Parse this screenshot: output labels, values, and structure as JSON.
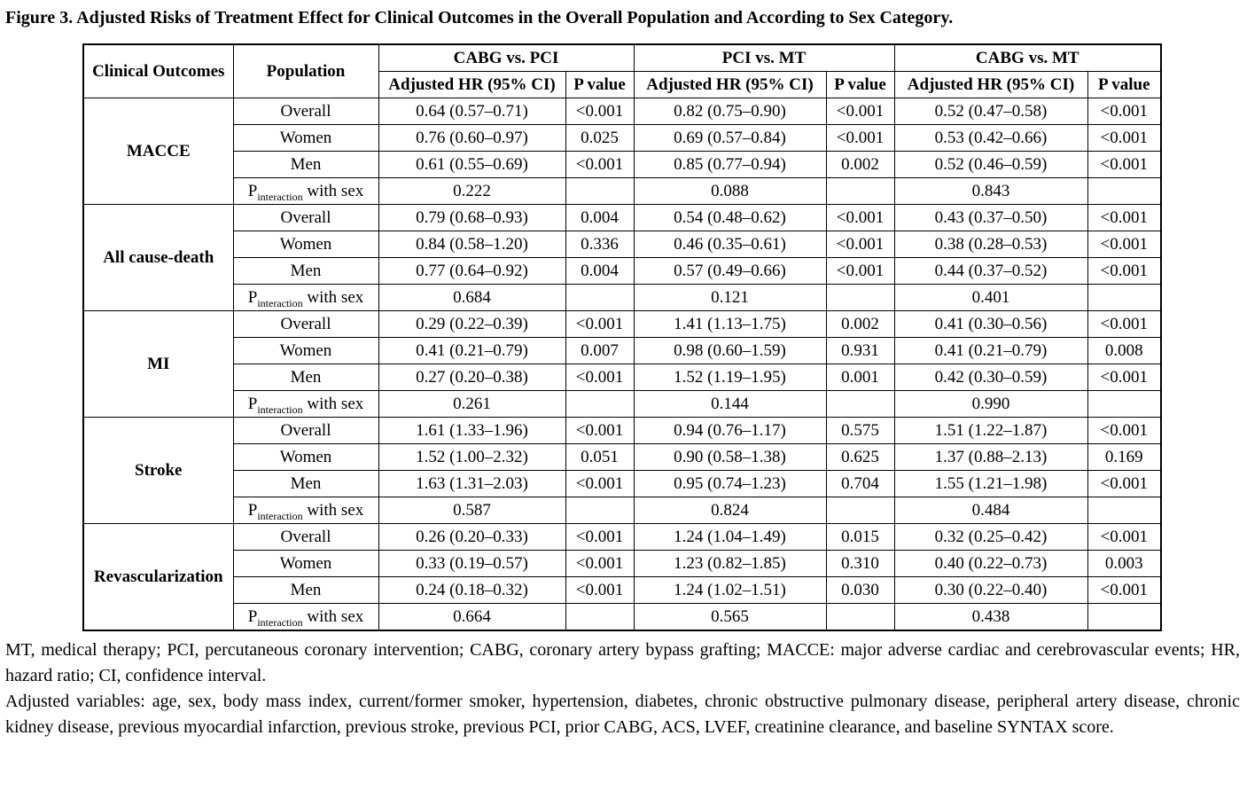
{
  "title": "Figure 3. Adjusted Risks of Treatment Effect for Clinical Outcomes in the Overall Population and According to Sex Category.",
  "table": {
    "headers": {
      "clinical_outcomes": "Clinical Outcomes",
      "population": "Population",
      "groups": [
        "CABG vs. PCI",
        "PCI vs. MT",
        "CABG vs. MT"
      ],
      "adjusted_hr": "Adjusted HR (95% CI)",
      "p_value": "P value"
    },
    "p_interaction_label": {
      "prefix": "P",
      "subscript": "interaction",
      "suffix": " with sex"
    },
    "outcomes": [
      {
        "name": "MACCE",
        "rows": [
          {
            "population": "Overall",
            "cells": [
              "0.64 (0.57–0.71)",
              "<0.001",
              "0.82 (0.75–0.90)",
              "<0.001",
              "0.52 (0.47–0.58)",
              "<0.001"
            ]
          },
          {
            "population": "Women",
            "cells": [
              "0.76 (0.60–0.97)",
              "0.025",
              "0.69 (0.57–0.84)",
              "<0.001",
              "0.53 (0.42–0.66)",
              "<0.001"
            ]
          },
          {
            "population": "Men",
            "cells": [
              "0.61 (0.55–0.69)",
              "<0.001",
              "0.85 (0.77–0.94)",
              "0.002",
              "0.52 (0.46–0.59)",
              "<0.001"
            ]
          }
        ],
        "p_interaction": [
          "0.222",
          "0.088",
          "0.843"
        ]
      },
      {
        "name": "All cause-death",
        "rows": [
          {
            "population": "Overall",
            "cells": [
              "0.79 (0.68–0.93)",
              "0.004",
              "0.54 (0.48–0.62)",
              "<0.001",
              "0.43 (0.37–0.50)",
              "<0.001"
            ]
          },
          {
            "population": "Women",
            "cells": [
              "0.84 (0.58–1.20)",
              "0.336",
              "0.46 (0.35–0.61)",
              "<0.001",
              "0.38 (0.28–0.53)",
              "<0.001"
            ]
          },
          {
            "population": "Men",
            "cells": [
              "0.77 (0.64–0.92)",
              "0.004",
              "0.57 (0.49–0.66)",
              "<0.001",
              "0.44 (0.37–0.52)",
              "<0.001"
            ]
          }
        ],
        "p_interaction": [
          "0.684",
          "0.121",
          "0.401"
        ]
      },
      {
        "name": "MI",
        "rows": [
          {
            "population": "Overall",
            "cells": [
              "0.29 (0.22–0.39)",
              "<0.001",
              "1.41 (1.13–1.75)",
              "0.002",
              "0.41 (0.30–0.56)",
              "<0.001"
            ]
          },
          {
            "population": "Women",
            "cells": [
              "0.41 (0.21–0.79)",
              "0.007",
              "0.98 (0.60–1.59)",
              "0.931",
              "0.41 (0.21–0.79)",
              "0.008"
            ]
          },
          {
            "population": "Men",
            "cells": [
              "0.27 (0.20–0.38)",
              "<0.001",
              "1.52 (1.19–1.95)",
              "0.001",
              "0.42 (0.30–0.59)",
              "<0.001"
            ]
          }
        ],
        "p_interaction": [
          "0.261",
          "0.144",
          "0.990"
        ]
      },
      {
        "name": "Stroke",
        "rows": [
          {
            "population": "Overall",
            "cells": [
              "1.61 (1.33–1.96)",
              "<0.001",
              "0.94 (0.76–1.17)",
              "0.575",
              "1.51 (1.22–1.87)",
              "<0.001"
            ]
          },
          {
            "population": "Women",
            "cells": [
              "1.52 (1.00–2.32)",
              "0.051",
              "0.90 (0.58–1.38)",
              "0.625",
              "1.37 (0.88–2.13)",
              "0.169"
            ]
          },
          {
            "population": "Men",
            "cells": [
              "1.63 (1.31–2.03)",
              "<0.001",
              "0.95 (0.74–1.23)",
              "0.704",
              "1.55 (1.21–1.98)",
              "<0.001"
            ]
          }
        ],
        "p_interaction": [
          "0.587",
          "0.824",
          "0.484"
        ]
      },
      {
        "name": "Revascularization",
        "rows": [
          {
            "population": "Overall",
            "cells": [
              "0.26 (0.20–0.33)",
              "<0.001",
              "1.24 (1.04–1.49)",
              "0.015",
              "0.32 (0.25–0.42)",
              "<0.001"
            ]
          },
          {
            "population": "Women",
            "cells": [
              "0.33 (0.19–0.57)",
              "<0.001",
              "1.23 (0.82–1.85)",
              "0.310",
              "0.40 (0.22–0.73)",
              "0.003"
            ]
          },
          {
            "population": "Men",
            "cells": [
              "0.24 (0.18–0.32)",
              "<0.001",
              "1.24 (1.02–1.51)",
              "0.030",
              "0.30 (0.22–0.40)",
              "<0.001"
            ]
          }
        ],
        "p_interaction": [
          "0.664",
          "0.565",
          "0.438"
        ]
      }
    ]
  },
  "footnotes": [
    "MT, medical therapy; PCI, percutaneous coronary intervention; CABG, coronary artery bypass grafting; MACCE: major adverse cardiac and cerebrovascular events; HR, hazard ratio; CI, confidence interval.",
    "Adjusted variables: age, sex, body mass index, current/former smoker, hypertension, diabetes, chronic obstructive pulmonary disease, peripheral artery disease, chronic kidney disease, previous myocardial infarction, previous stroke, previous PCI, prior CABG, ACS, LVEF, creatinine clearance, and baseline SYNTAX score."
  ]
}
